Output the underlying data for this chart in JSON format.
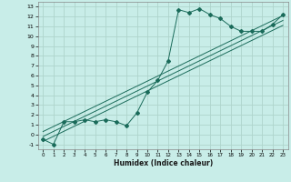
{
  "title": "",
  "xlabel": "Humidex (Indice chaleur)",
  "background_color": "#c8ede8",
  "grid_color": "#aed4cc",
  "line_color": "#1a6b5a",
  "xlim": [
    -0.5,
    23.5
  ],
  "ylim": [
    -1.5,
    13.5
  ],
  "xticks": [
    0,
    1,
    2,
    3,
    4,
    5,
    6,
    7,
    8,
    9,
    10,
    11,
    12,
    13,
    14,
    15,
    16,
    17,
    18,
    19,
    20,
    21,
    22,
    23
  ],
  "yticks": [
    -1,
    0,
    1,
    2,
    3,
    4,
    5,
    6,
    7,
    8,
    9,
    10,
    11,
    12,
    13
  ],
  "scatter_data": [
    [
      0,
      -0.5
    ],
    [
      1,
      -1.0
    ],
    [
      2,
      1.3
    ],
    [
      3,
      1.3
    ],
    [
      4,
      1.5
    ],
    [
      5,
      1.3
    ],
    [
      6,
      1.5
    ],
    [
      7,
      1.3
    ],
    [
      8,
      0.9
    ],
    [
      9,
      2.2
    ],
    [
      10,
      4.3
    ],
    [
      11,
      5.5
    ],
    [
      12,
      7.5
    ],
    [
      13,
      12.7
    ],
    [
      14,
      12.4
    ],
    [
      15,
      12.8
    ],
    [
      16,
      12.2
    ],
    [
      17,
      11.8
    ],
    [
      18,
      11.0
    ],
    [
      19,
      10.5
    ],
    [
      20,
      10.5
    ],
    [
      21,
      10.5
    ],
    [
      22,
      11.2
    ],
    [
      23,
      12.2
    ]
  ],
  "reg_line1": [
    [
      0,
      0.3
    ],
    [
      23,
      12.1
    ]
  ],
  "reg_line2": [
    [
      0,
      -0.2
    ],
    [
      23,
      11.6
    ]
  ],
  "reg_line3": [
    [
      0,
      -0.7
    ],
    [
      23,
      11.1
    ]
  ]
}
